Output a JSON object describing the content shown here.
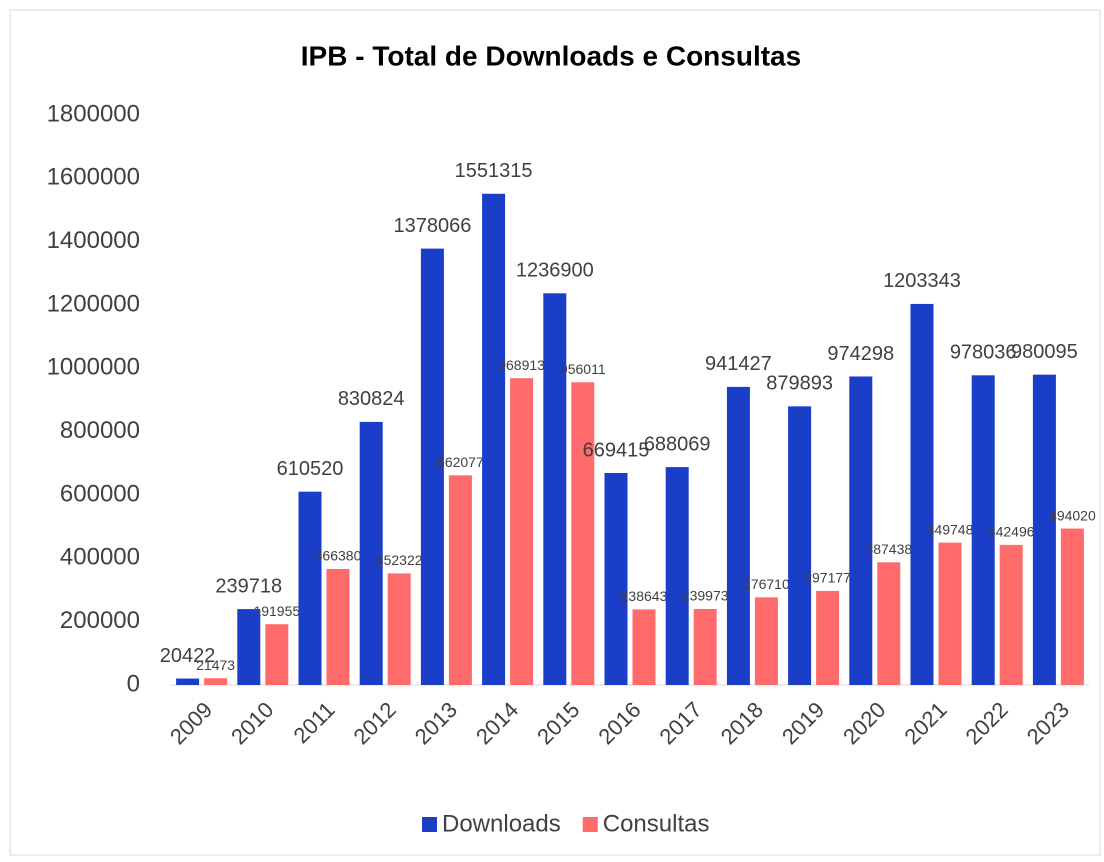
{
  "chart_data": {
    "type": "bar",
    "title": "IPB - Total de Downloads e Consultas",
    "categories": [
      "2009",
      "2010",
      "2011",
      "2012",
      "2013",
      "2014",
      "2015",
      "2016",
      "2017",
      "2018",
      "2019",
      "2020",
      "2021",
      "2022",
      "2023"
    ],
    "series": [
      {
        "name": "Downloads",
        "color": "#1a3ec7",
        "values": [
          20422,
          239718,
          610520,
          830824,
          1378066,
          1551315,
          1236900,
          669415,
          688069,
          941427,
          879893,
          974298,
          1203343,
          978036,
          980095
        ]
      },
      {
        "name": "Consultas",
        "color": "#ff6b6b",
        "values": [
          21473,
          191955,
          366380,
          352322,
          662077,
          968913,
          956011,
          238643,
          239973,
          276710,
          297177,
          387438,
          449748,
          442496,
          494020
        ]
      }
    ],
    "ylim": [
      0,
      1800000
    ],
    "yticks": [
      0,
      200000,
      400000,
      600000,
      800000,
      1000000,
      1200000,
      1400000,
      1600000,
      1800000
    ],
    "grid": false,
    "legend": "bottom"
  }
}
